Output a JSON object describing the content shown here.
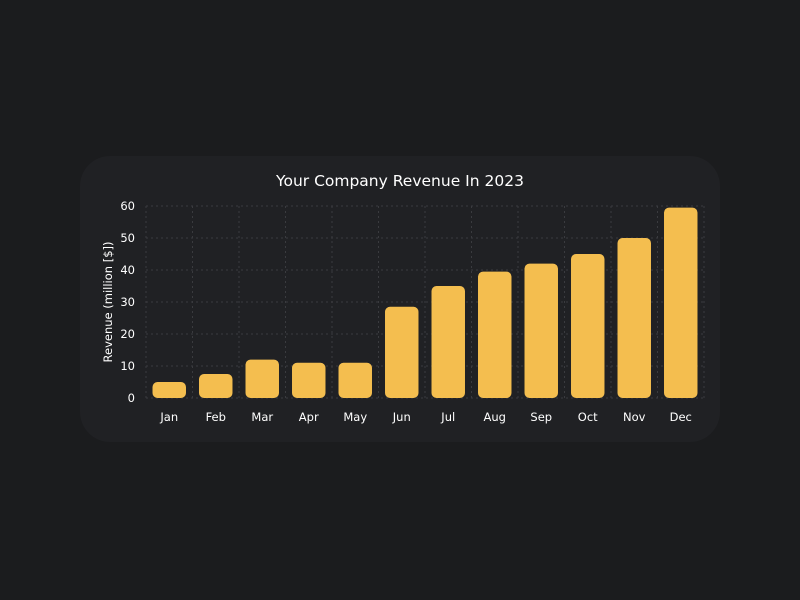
{
  "chart_data": {
    "type": "bar",
    "title": "Your Company Revenue In 2023",
    "xlabel": "",
    "ylabel": "Revenue (million [$])",
    "categories": [
      "Jan",
      "Feb",
      "Mar",
      "Apr",
      "May",
      "Jun",
      "Jul",
      "Aug",
      "Sep",
      "Oct",
      "Nov",
      "Dec"
    ],
    "values": [
      5,
      7.5,
      12,
      11,
      11,
      28.5,
      35,
      39.5,
      42,
      45,
      50,
      59.5
    ],
    "ylim": [
      0,
      60
    ],
    "yticks": [
      0,
      10,
      20,
      30,
      40,
      50,
      60
    ],
    "grid": true,
    "legend": "none",
    "colors": {
      "bar": "#f4be4f",
      "background": "#1b1c1e",
      "card": "#202124",
      "grid": "#3a3b3f",
      "text": "#ffffff"
    }
  }
}
